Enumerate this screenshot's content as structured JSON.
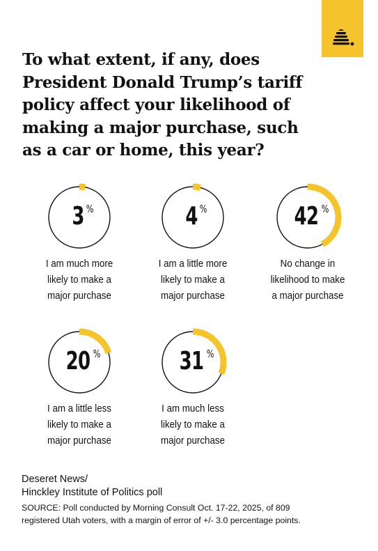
{
  "brand": {
    "logo_icon": "beehive-icon",
    "accent_color": "#f5c32c"
  },
  "title": "To what extent, if any, does President Donald Trump’s tariff policy affect your likelihood of making a major purchase, such as a car or home, this year?",
  "chart_data": {
    "type": "donut",
    "unit": "%",
    "title": "To what extent, if any, does President Donald Trump’s tariff policy affect your likelihood of making a major purchase, such as a car or home, this year?",
    "categories": [
      "I am much more likely to make a major purchase",
      "I am a little more likely to make a major purchase",
      "No change in likelihood to make a major purchase",
      "I am a little less likely to make a major purchase",
      "I am much less likely to make a major purchase"
    ],
    "values": [
      3,
      4,
      42,
      20,
      31
    ],
    "labels": [
      [
        "I am much more",
        "likely to make a",
        "major purchase"
      ],
      [
        "I am a little more",
        "likely to make a",
        "major purchase"
      ],
      [
        "No change in",
        "likelihood to make",
        "a major purchase"
      ],
      [
        "I am a little less",
        "likely to make a",
        "major purchase"
      ],
      [
        "I am much less",
        "likely to make a",
        "major purchase"
      ]
    ],
    "colors": {
      "fill": "#f5c32c",
      "ring": "#111111"
    }
  },
  "footer": {
    "source_name_line1": "Deseret News/",
    "source_name_line2": "Hinckley Institute of Politics poll",
    "note_line1": "SOURCE: Poll conducted by Morning Consult Oct. 17-22, 2025, of 809",
    "note_line2": "registered Utah voters, with a margin of error of +/- 3.0 percentage points."
  }
}
